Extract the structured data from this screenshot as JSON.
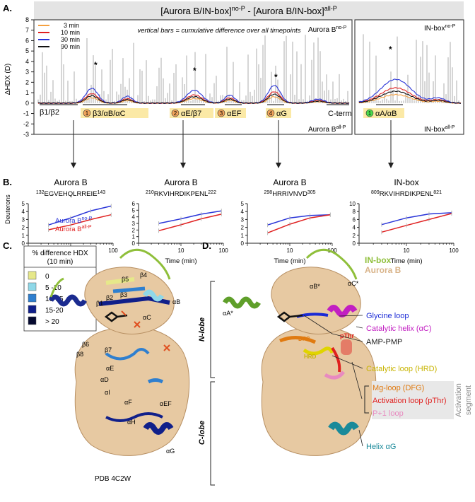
{
  "panel_labels": {
    "a": "A.",
    "b": "B.",
    "c": "C.",
    "d": "D."
  },
  "panel_a": {
    "header_pre": "[Aurora B/IN-box]",
    "header_sup1": "no-P",
    "header_mid": " - [Aurora B/IN-box]",
    "header_sup2": "all-P",
    "ylabel": "ΔHDX (D)",
    "note": "vertical bars = cumulative difference over all timepoints",
    "corner_top_left_main": "Aurora B",
    "corner_top_left_sup": "no-P",
    "corner_bottom_left_main": "Aurora B",
    "corner_bottom_left_sup": "all-P",
    "corner_top_right_main": "IN-box",
    "corner_top_right_sup": "no-P",
    "corner_bottom_right_main": "IN-box",
    "corner_bottom_right_sup": "all-P",
    "regions": [
      {
        "label": "β1/β2",
        "num": ""
      },
      {
        "label": "β3/αB/αC",
        "num": "1"
      },
      {
        "label": "αE/β7",
        "num": "2"
      },
      {
        "label": "αEF",
        "num": "3"
      },
      {
        "label": "αG",
        "num": "4"
      },
      {
        "label": "C-term",
        "num": ""
      },
      {
        "label": "αA/αB",
        "num": "1"
      }
    ],
    "star": "*"
  },
  "chart_data": [
    {
      "type": "line",
      "panel": "A",
      "ylabel": "ΔHDX (D)",
      "ylim": [
        -3,
        8
      ],
      "yticks": [
        -3,
        -2,
        -1,
        0,
        1,
        2,
        3,
        4,
        5,
        6,
        7,
        8
      ],
      "legend": [
        "3 min",
        "10 min",
        "30 min",
        "90 min"
      ],
      "legend_position": "top-left",
      "series_colors": {
        "3 min": "#f5a040",
        "10 min": "#e02020",
        "30 min": "#2a35d8",
        "90 min": "#111111"
      }
    },
    {
      "type": "line",
      "panel": "B",
      "title": "Aurora B",
      "subtitle_sup1": "132",
      "subtitle_seq": "EGVEHQLRREIE",
      "subtitle_sup2": "143",
      "xlabel": "Time (min)",
      "ylabel": "Deuterons",
      "x": [
        3,
        10,
        30,
        90
      ],
      "xlim": [
        1,
        100
      ],
      "xscale": "log",
      "ylim": [
        0,
        5
      ],
      "yticks": [
        0,
        1,
        2,
        3,
        4,
        5
      ],
      "series": [
        {
          "name": "Aurora B",
          "name_sup": "no-P",
          "color": "#2a35d8",
          "values": [
            2.3,
            3.2,
            4.1,
            4.7
          ]
        },
        {
          "name": "Aurora B",
          "name_sup": "all-P",
          "color": "#e02020",
          "values": [
            1.7,
            2.3,
            3.0,
            3.6
          ]
        }
      ]
    },
    {
      "type": "line",
      "panel": "B",
      "title": "Aurora B",
      "subtitle_sup1": "210",
      "subtitle_seq": "RKVIHRDIKPENL",
      "subtitle_sup2": "222",
      "xlabel": "Time (min)",
      "x": [
        3,
        10,
        30,
        90
      ],
      "xlim": [
        1,
        100
      ],
      "xscale": "log",
      "ylim": [
        0,
        6
      ],
      "yticks": [
        0,
        1,
        2,
        3,
        4,
        5,
        6
      ],
      "series": [
        {
          "name": "Aurora B",
          "name_sup": "no-P",
          "color": "#2a35d8",
          "values": [
            3.0,
            3.7,
            4.4,
            4.9
          ]
        },
        {
          "name": "Aurora B",
          "name_sup": "all-P",
          "color": "#e02020",
          "values": [
            1.9,
            2.8,
            3.7,
            4.4
          ]
        }
      ]
    },
    {
      "type": "line",
      "panel": "B",
      "title": "Aurora B",
      "subtitle_sup1": "298",
      "subtitle_seq": "HRRIVNVD",
      "subtitle_sup2": "305",
      "xlabel": "Time (min)",
      "x": [
        3,
        10,
        30,
        90
      ],
      "xlim": [
        1,
        100
      ],
      "xscale": "log",
      "ylim": [
        0,
        5
      ],
      "yticks": [
        0,
        1,
        2,
        3,
        4,
        5
      ],
      "series": [
        {
          "name": "Aurora B",
          "name_sup": "no-P",
          "color": "#2a35d8",
          "values": [
            2.3,
            3.2,
            3.5,
            3.6
          ]
        },
        {
          "name": "Aurora B",
          "name_sup": "all-P",
          "color": "#e02020",
          "values": [
            1.3,
            2.4,
            3.2,
            3.6
          ]
        }
      ]
    },
    {
      "type": "line",
      "panel": "B",
      "title": "IN-box",
      "subtitle_sup1": "809",
      "subtitle_seq": "RKVIHRDIKPENL",
      "subtitle_sup2": "821",
      "xlabel": "Time (min)",
      "x": [
        3,
        10,
        30,
        90
      ],
      "xlim": [
        1,
        100
      ],
      "xscale": "log",
      "ylim": [
        0,
        10
      ],
      "yticks": [
        0,
        2,
        4,
        6,
        8,
        10
      ],
      "series": [
        {
          "name": "IN-box",
          "name_sup": "no-P",
          "color": "#2a35d8",
          "values": [
            4.7,
            6.4,
            7.4,
            7.7
          ]
        },
        {
          "name": "IN-box",
          "name_sup": "all-P",
          "color": "#e02020",
          "values": [
            2.8,
            4.5,
            6.0,
            7.5
          ]
        }
      ]
    }
  ],
  "panel_c": {
    "legend_title_line1": "% difference HDX",
    "legend_title_line2": "(10 min)",
    "legend_items": [
      {
        "label": "0",
        "color": "#e6e88a"
      },
      {
        "label": "5 -10",
        "color": "#8fd8e8"
      },
      {
        "label": "10-15",
        "color": "#2f7fcf"
      },
      {
        "label": "15-20",
        "color": "#101f8a"
      },
      {
        "label": "> 20",
        "color": "#050a30"
      }
    ],
    "structure_labels": [
      "β5",
      "β4",
      "β3",
      "β2",
      "β1",
      "αB",
      "αC",
      "β6",
      "β7",
      "β8",
      "αE",
      "αD",
      "αI",
      "αF",
      "αEF",
      "αH",
      "αG"
    ],
    "caption": "PDB 4C2W"
  },
  "panel_d": {
    "inbox_label": "IN-box",
    "aurora_label": "Aurora B",
    "n_lobe": "N-lobe",
    "c_lobe": "C-lobe",
    "helix_labels": [
      "αB*",
      "αC*",
      "αA*"
    ],
    "dfg_short": "DFG",
    "hrd_short": "HRD",
    "pthr_short": "pThr",
    "callouts": [
      {
        "text": "Glycine loop",
        "color": "#1a2ad6"
      },
      {
        "text": "Catalytic helix (αC)",
        "color": "#c21ec2"
      },
      {
        "text": "AMP-PMP",
        "color": "#222222"
      },
      {
        "text": "Catalytic loop (HRD)",
        "color": "#c8b400"
      },
      {
        "text": "Mg-loop (DFG)",
        "color": "#e07a10"
      },
      {
        "text": "Activation loop (pThr)",
        "color": "#e0201e"
      },
      {
        "text": "P+1 loop",
        "color": "#e88ac0"
      },
      {
        "text": "Helix αG",
        "color": "#1a8a9a"
      }
    ],
    "activation_segment_line1": "Activation",
    "activation_segment_line2": "segment"
  }
}
